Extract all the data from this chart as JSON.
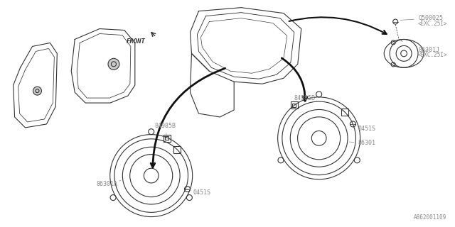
{
  "background_color": "#ffffff",
  "line_color": "#333333",
  "label_color": "#888888",
  "dark_line": "#111111",
  "figsize": [
    6.4,
    3.2
  ],
  "dpi": 100,
  "parts": {
    "86301A": "86301A",
    "86301": "86301",
    "84985B_lower": "84985B",
    "84985B_upper": "84985B",
    "0451S_lower": "0451S",
    "0451S_upper": "0451S",
    "Q500025": "Q500025",
    "exc25i_1": "<EXC.25I>",
    "86301J": "86301J",
    "exc25i_2": "<EXC.25I>",
    "front": "FRONT",
    "bottom_code": "A862001109"
  }
}
